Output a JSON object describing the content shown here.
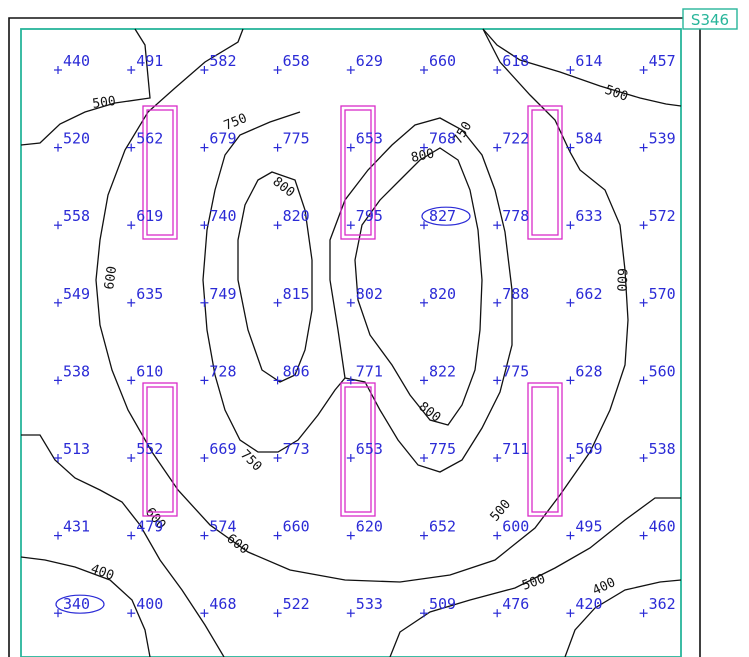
{
  "room_tag": "S346",
  "grid": {
    "rows": [
      [
        "440",
        "491",
        "582",
        "658",
        "629",
        "660",
        "618",
        "614",
        "457"
      ],
      [
        "520",
        "562",
        "679",
        "775",
        "653",
        "768",
        "722",
        "584",
        "539"
      ],
      [
        "558",
        "619",
        "740",
        "820",
        "795",
        "827",
        "778",
        "633",
        "572"
      ],
      [
        "549",
        "635",
        "749",
        "815",
        "802",
        "820",
        "788",
        "662",
        "570"
      ],
      [
        "538",
        "610",
        "728",
        "806",
        "771",
        "822",
        "775",
        "628",
        "560"
      ],
      [
        "513",
        "552",
        "669",
        "773",
        "653",
        "775",
        "711",
        "569",
        "538"
      ],
      [
        "431",
        "479",
        "574",
        "660",
        "620",
        "652",
        "600",
        "495",
        "460"
      ],
      [
        "340",
        "400",
        "468",
        "522",
        "533",
        "509",
        "476",
        "420",
        "362"
      ]
    ],
    "max_value": "827",
    "min_value": "340"
  },
  "isolines": {
    "labels": [
      "500",
      "500",
      "750",
      "800",
      "800",
      "600",
      "600",
      "750",
      "800",
      "750",
      "500",
      "600",
      "600",
      "500",
      "400",
      "400"
    ]
  },
  "colors": {
    "value_text": "#2b2bd6",
    "contour": "#111111",
    "luminaire": "#d92bc8",
    "room_frame": "#27b59a"
  }
}
